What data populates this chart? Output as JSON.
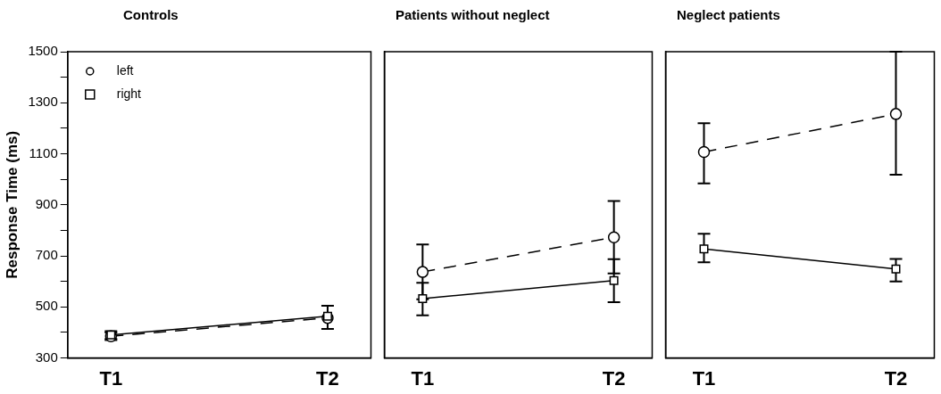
{
  "chart_data": [
    {
      "type": "line",
      "title": "Controls",
      "ylabel": "Response Time (ms)",
      "categories": [
        "T1",
        "T2"
      ],
      "ylim": [
        300,
        1500
      ],
      "yticks": [
        300,
        {
          "value": 400,
          "label": null
        },
        500,
        {
          "value": 600,
          "label": null
        },
        700,
        {
          "value": 800,
          "label": null
        },
        900,
        {
          "value": 1000,
          "label": null
        },
        1100,
        {
          "value": 1200,
          "label": null
        },
        1300,
        {
          "value": 1400,
          "label": null
        },
        1500
      ],
      "grid": false,
      "legend": "top left",
      "series": [
        {
          "name": "left",
          "color": "#000000",
          "values": [
            385,
            457
          ],
          "errors": [
            15,
            null
          ],
          "marker": "circle",
          "line_style": "dashed"
        },
        {
          "name": "right",
          "color": "#000000",
          "values": [
            390,
            464
          ],
          "errors": [
            15,
            [
              414,
              505
            ]
          ],
          "marker": "square",
          "line_style": "solid"
        }
      ]
    },
    {
      "type": "line",
      "title": "Patients without neglect",
      "categories": [
        "T1",
        "T2"
      ],
      "ylim": [
        300,
        1500
      ],
      "yticks": [
        300,
        500,
        700,
        900,
        1100,
        1300,
        1500
      ],
      "grid": false,
      "tick_labels": "x",
      "series": [
        {
          "color": "#000000",
          "values": [
            637,
            773
          ],
          "errors": [
            [
              530,
              745
            ],
            [
              631,
              915
            ]
          ],
          "marker": "circle",
          "line_style": "dashed"
        },
        {
          "color": "#000000",
          "values": [
            533,
            603
          ],
          "errors": [
            [
              467,
              595
            ],
            [
              519,
              687
            ]
          ],
          "marker": "square",
          "line_style": "solid"
        }
      ]
    },
    {
      "type": "line",
      "title": "Neglect patients",
      "categories": [
        "T1",
        "T2"
      ],
      "ylim": [
        300,
        1500
      ],
      "yticks": [
        300,
        500,
        700,
        900,
        1100,
        1300,
        1500
      ],
      "grid": false,
      "tick_labels": "x",
      "series": [
        {
          "color": "#000000",
          "values": [
            1107,
            1256
          ],
          "errors": [
            [
              984,
              1220
            ],
            [
              1018,
              1500
            ]
          ],
          "marker": "circle",
          "line_style": "dashed"
        },
        {
          "color": "#000000",
          "values": [
            727,
            649
          ],
          "errors": [
            [
              675,
              787
            ],
            [
              600,
              688
            ]
          ],
          "marker": "square",
          "line_style": "solid"
        }
      ]
    }
  ]
}
